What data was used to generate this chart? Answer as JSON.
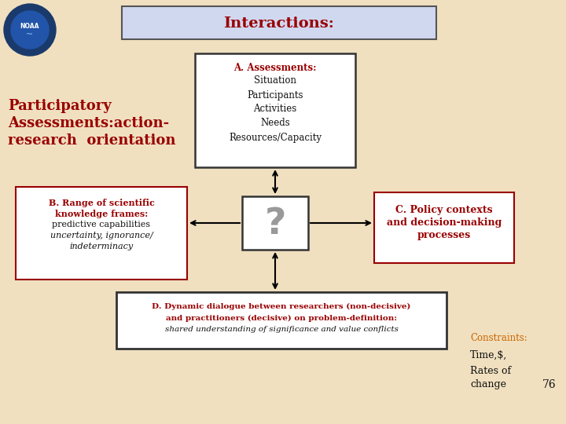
{
  "background_color": "#f0e0c0",
  "title_text": "Interactions:",
  "title_box_color": "#d0d8f0",
  "title_text_color": "#990000",
  "left_label_lines": [
    "Participatory",
    "Assessments:action-",
    "research  orientation"
  ],
  "left_label_color": "#990000",
  "box_A_title": "A. Assessments:",
  "box_A_items": [
    "Situation",
    "Participants",
    "Activities",
    "Needs",
    "Resources/Capacity"
  ],
  "box_B_title1": "B. Range of scientific",
  "box_B_title2": "knowledge frames:",
  "box_B_line3": "predictive capabilities",
  "box_B_line4": "uncertainty, ignorance/",
  "box_B_line5": "indeterminacy",
  "box_C_title1": "C. Policy contexts",
  "box_C_title2": "and decision-making",
  "box_C_title3": "processes",
  "box_D_line1": "D. Dynamic dialogue between researchers (non-decisive)",
  "box_D_line2": "and practitioners (decisive) on problem-definition:",
  "box_D_line3": "shared understanding of significance and value conflicts",
  "right_constraints": "Constraints:",
  "right_time": "Time,$,",
  "right_rates": "Rates of",
  "right_change": "change",
  "page_number": "76",
  "red_color": "#990000",
  "orange_color": "#cc6600",
  "dark_color": "#111111",
  "box_border_red": "#990000",
  "box_border_dark": "#333333",
  "title_border": "#555555"
}
